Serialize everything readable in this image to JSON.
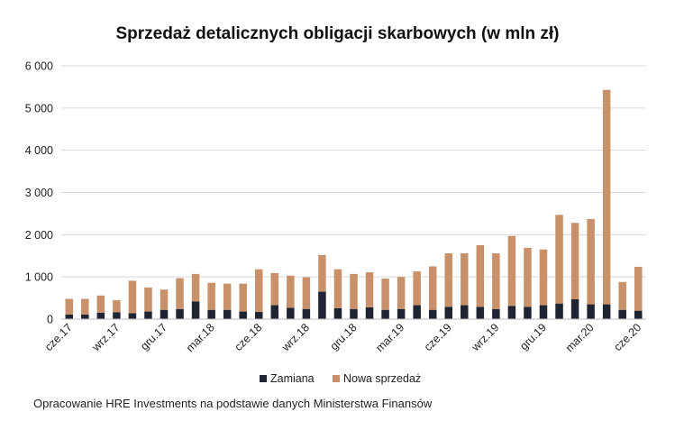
{
  "chart_data": {
    "type": "bar",
    "stacked": true,
    "title": "Sprzedaż detalicznych obligacji skarbowych (w mln zł)",
    "xlabel": "",
    "ylabel": "",
    "ylim": [
      0,
      6000
    ],
    "yticks": [
      "0",
      "1 000",
      "2 000",
      "3 000",
      "4 000",
      "5 000",
      "6 000"
    ],
    "ytick_values": [
      0,
      1000,
      2000,
      3000,
      4000,
      5000,
      6000
    ],
    "grid": true,
    "legend_position": "bottom",
    "months": 37,
    "xtick_labels": [
      {
        "index": 0,
        "label": "cze.17"
      },
      {
        "index": 3,
        "label": "wrz.17"
      },
      {
        "index": 6,
        "label": "gru.17"
      },
      {
        "index": 9,
        "label": "mar.18"
      },
      {
        "index": 12,
        "label": "cze.18"
      },
      {
        "index": 15,
        "label": "wrz.18"
      },
      {
        "index": 18,
        "label": "gru.18"
      },
      {
        "index": 21,
        "label": "mar.19"
      },
      {
        "index": 24,
        "label": "cze.19"
      },
      {
        "index": 27,
        "label": "wrz.19"
      },
      {
        "index": 30,
        "label": "gru.19"
      },
      {
        "index": 33,
        "label": "mar.20"
      },
      {
        "index": 36,
        "label": "cze.20"
      }
    ],
    "series": [
      {
        "name": "Zamiana",
        "color": "#1f2433",
        "values": [
          110,
          110,
          150,
          160,
          140,
          180,
          220,
          240,
          420,
          220,
          220,
          180,
          170,
          330,
          270,
          240,
          650,
          260,
          240,
          280,
          220,
          240,
          330,
          220,
          290,
          330,
          290,
          240,
          310,
          290,
          330,
          370,
          470,
          350,
          350,
          220,
          200
        ]
      },
      {
        "name": "Nowa sprzedaż",
        "color": "#c8916a",
        "values": [
          370,
          370,
          410,
          290,
          770,
          570,
          480,
          730,
          650,
          640,
          620,
          660,
          1010,
          760,
          760,
          750,
          870,
          920,
          830,
          830,
          740,
          760,
          800,
          1030,
          1270,
          1230,
          1460,
          1320,
          1660,
          1400,
          1320,
          2100,
          1810,
          2020,
          5080,
          660,
          1040
        ]
      }
    ]
  },
  "source": "Opracowanie HRE Investments na podstawie danych Ministerstwa Finansów",
  "colors": {
    "grid": "#d9d9d9",
    "axis": "#bfbfbf"
  }
}
